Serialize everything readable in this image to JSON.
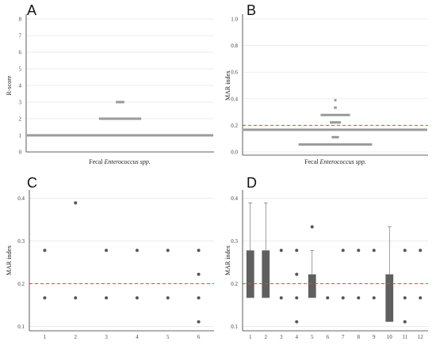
{
  "colors": {
    "bar": "#9a9a9a",
    "point": "#555555",
    "box": "#5f5f5f",
    "threshold": "#e8473d",
    "grid": "#e6e6e6",
    "axis": "#333333"
  },
  "panels": {
    "A": {
      "letter": "A",
      "ylabel": "R-score",
      "xlabel_prefix": "Fecal ",
      "xlabel_italic": "Enterococcus spp.",
      "yticks": [
        "0",
        "1",
        "2",
        "3",
        "4",
        "5",
        "6",
        "7",
        "8"
      ]
    },
    "B": {
      "letter": "B",
      "ylabel": "MAR index",
      "xlabel_prefix": "Fecal ",
      "xlabel_italic": "Enterococcus spp.",
      "yticks": [
        "0.0",
        "0.2",
        "0.4",
        "0.6",
        "0.8",
        "1.0"
      ]
    },
    "C": {
      "letter": "C",
      "ylabel": "MAR index",
      "yticks": [
        "0.1",
        "0.2",
        "0.3",
        "0.4"
      ],
      "xticks": [
        "1",
        "2",
        "3",
        "4",
        "5",
        "6"
      ]
    },
    "D": {
      "letter": "D",
      "ylabel": "MAR index",
      "yticks": [
        "0.1",
        "0.2",
        "0.3",
        "0.4"
      ],
      "xticks": [
        "1",
        "2",
        "3",
        "4",
        "5",
        "6",
        "7",
        "8",
        "9",
        "10",
        "11",
        "12"
      ]
    }
  },
  "chart_data": [
    {
      "id": "A",
      "type": "bar",
      "orientation": "histogram-lines",
      "ylabel": "R-score",
      "xlabel": "Fecal Enterococcus spp.",
      "ylim": [
        0,
        8
      ],
      "bins": [
        {
          "y": 1,
          "count": 22
        },
        {
          "y": 2,
          "count": 5
        },
        {
          "y": 3,
          "count": 1
        }
      ],
      "grid": true
    },
    {
      "id": "B",
      "type": "bar",
      "orientation": "histogram-lines",
      "ylabel": "MAR index",
      "xlabel": "Fecal Enterococcus spp.",
      "ylim": [
        0,
        1.0
      ],
      "threshold": 0.2,
      "bins": [
        {
          "y": 0.056,
          "count": 10
        },
        {
          "y": 0.111,
          "count": 1
        },
        {
          "y": 0.167,
          "count": 25
        },
        {
          "y": 0.222,
          "count": 1.5
        },
        {
          "y": 0.278,
          "count": 4
        },
        {
          "y": 0.333,
          "count": 0.4
        },
        {
          "y": 0.389,
          "count": 0.3
        }
      ],
      "grid": true
    },
    {
      "id": "C",
      "type": "scatter",
      "ylabel": "MAR index",
      "ylim": [
        0.09,
        0.41
      ],
      "threshold": 0.2,
      "categories": [
        "1",
        "2",
        "3",
        "4",
        "5",
        "6"
      ],
      "points": [
        {
          "x": 1,
          "y": 0.278
        },
        {
          "x": 1,
          "y": 0.167
        },
        {
          "x": 2,
          "y": 0.389
        },
        {
          "x": 2,
          "y": 0.167
        },
        {
          "x": 3,
          "y": 0.278
        },
        {
          "x": 3,
          "y": 0.167
        },
        {
          "x": 4,
          "y": 0.278
        },
        {
          "x": 4,
          "y": 0.167
        },
        {
          "x": 5,
          "y": 0.278
        },
        {
          "x": 5,
          "y": 0.167
        },
        {
          "x": 6,
          "y": 0.278
        },
        {
          "x": 6,
          "y": 0.222
        },
        {
          "x": 6,
          "y": 0.167
        },
        {
          "x": 6,
          "y": 0.111
        }
      ],
      "grid": true
    },
    {
      "id": "D",
      "type": "box",
      "ylabel": "MAR index",
      "ylim": [
        0.09,
        0.41
      ],
      "threshold": 0.2,
      "categories": [
        "1",
        "2",
        "3",
        "4",
        "5",
        "6",
        "7",
        "8",
        "9",
        "10",
        "11",
        "12"
      ],
      "boxes": [
        {
          "x": 1,
          "q1": 0.167,
          "median": 0.167,
          "q3": 0.278,
          "whisker_low": 0.167,
          "whisker_high": 0.389
        },
        {
          "x": 2,
          "q1": 0.167,
          "median": 0.167,
          "q3": 0.278,
          "whisker_low": 0.167,
          "whisker_high": 0.389
        },
        {
          "x": 5,
          "q1": 0.167,
          "median": 0.167,
          "q3": 0.222,
          "whisker_low": 0.167,
          "whisker_high": 0.278
        },
        {
          "x": 10,
          "q1": 0.111,
          "median": 0.111,
          "q3": 0.222,
          "whisker_low": 0.111,
          "whisker_high": 0.333
        }
      ],
      "points": [
        {
          "x": 3,
          "y": 0.278
        },
        {
          "x": 3,
          "y": 0.167
        },
        {
          "x": 4,
          "y": 0.278
        },
        {
          "x": 4,
          "y": 0.222
        },
        {
          "x": 4,
          "y": 0.167
        },
        {
          "x": 4,
          "y": 0.111
        },
        {
          "x": 5,
          "y": 0.333
        },
        {
          "x": 6,
          "y": 0.167
        },
        {
          "x": 7,
          "y": 0.278
        },
        {
          "x": 7,
          "y": 0.167
        },
        {
          "x": 8,
          "y": 0.278
        },
        {
          "x": 8,
          "y": 0.167
        },
        {
          "x": 9,
          "y": 0.278
        },
        {
          "x": 9,
          "y": 0.167
        },
        {
          "x": 11,
          "y": 0.278
        },
        {
          "x": 11,
          "y": 0.167
        },
        {
          "x": 11,
          "y": 0.111
        },
        {
          "x": 12,
          "y": 0.278
        },
        {
          "x": 12,
          "y": 0.167
        }
      ],
      "grid": true
    }
  ]
}
